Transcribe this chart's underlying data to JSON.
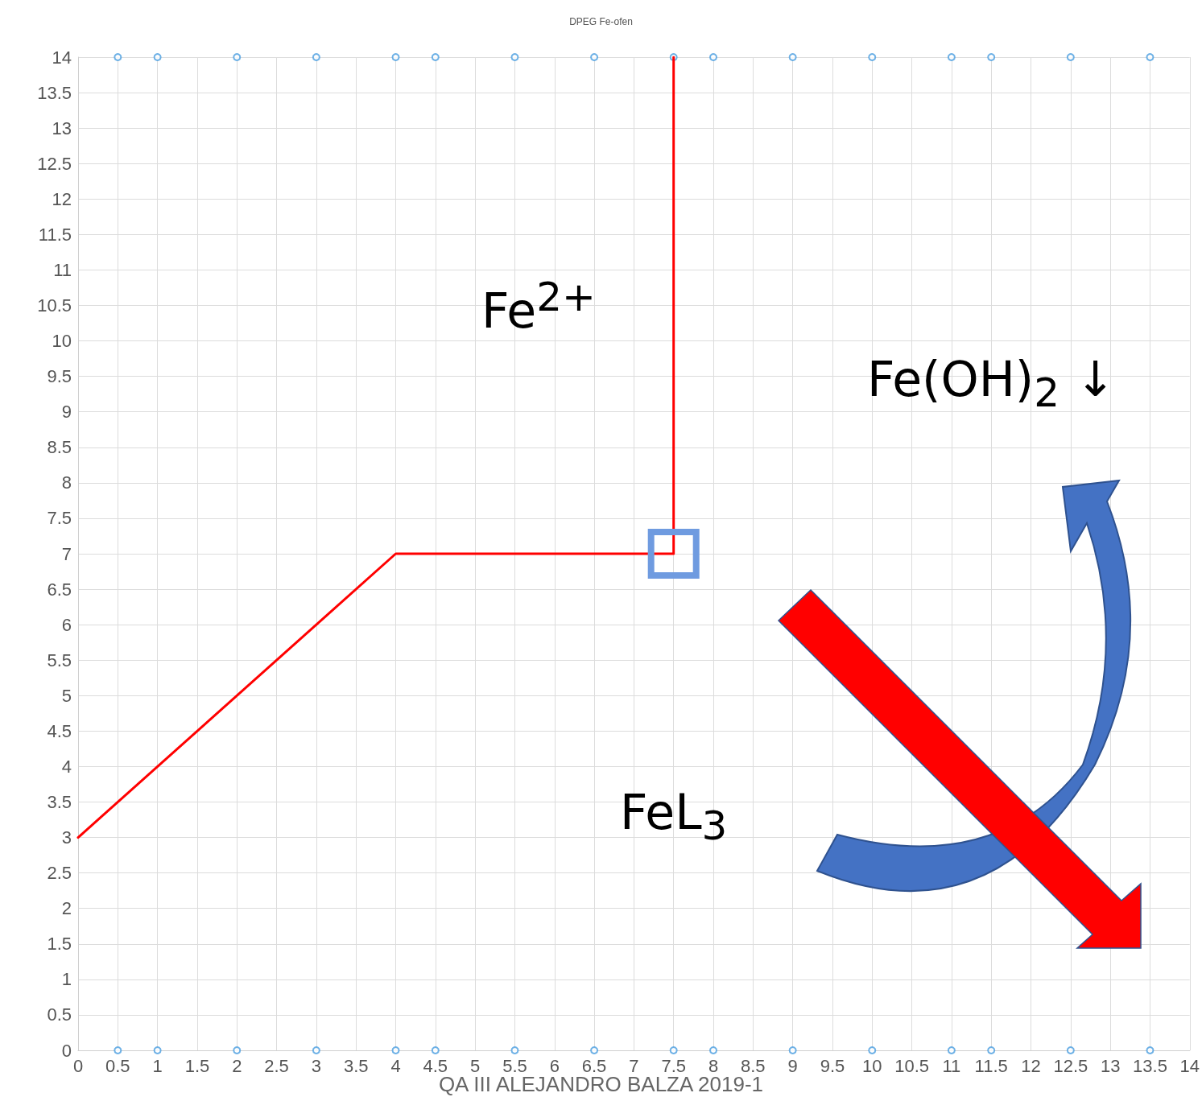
{
  "chart_data": {
    "type": "line",
    "title": "DPEG Fe-ofen",
    "series": [
      {
        "color": "#ff0000",
        "x": [
          0,
          4,
          7.5,
          7.5
        ],
        "values": [
          3,
          7,
          7,
          14
        ],
        "marker": "none",
        "line_style": "solid"
      },
      {
        "type": "scatter",
        "color": "#4a9de0",
        "marker": "circle",
        "x": [
          0.5,
          1,
          2,
          3,
          4,
          4.5,
          5.5,
          6.5,
          7.5,
          8,
          9,
          10,
          11,
          11.5,
          12.5,
          13.5
        ],
        "values": [
          14,
          14,
          14,
          14,
          14,
          14,
          14,
          14,
          14,
          14,
          14,
          14,
          14,
          14,
          14,
          14
        ]
      },
      {
        "type": "scatter",
        "color": "#4a9de0",
        "marker": "circle",
        "x": [
          0.5,
          1,
          2,
          3,
          4,
          4.5,
          5.5,
          6.5,
          7.5,
          8,
          9,
          10,
          11,
          11.5,
          12.5,
          13.5
        ],
        "values": [
          0,
          0,
          0,
          0,
          0,
          0,
          0,
          0,
          0,
          0,
          0,
          0,
          0,
          0,
          0,
          0
        ]
      }
    ],
    "xlim": [
      0,
      14
    ],
    "xticks": [
      0,
      0.5,
      1,
      1.5,
      2,
      2.5,
      3,
      3.5,
      4,
      4.5,
      5,
      5.5,
      6,
      6.5,
      7,
      7.5,
      8,
      8.5,
      9,
      9.5,
      10,
      10.5,
      11,
      11.5,
      12,
      12.5,
      13,
      13.5,
      14
    ],
    "ylim": [
      0,
      14
    ],
    "yticks": [
      0,
      0.5,
      1,
      1.5,
      2,
      2.5,
      3,
      3.5,
      4,
      4.5,
      5,
      5.5,
      6,
      6.5,
      7,
      7.5,
      8,
      8.5,
      9,
      9.5,
      10,
      10.5,
      11,
      11.5,
      12,
      12.5,
      13,
      13.5,
      14
    ],
    "grid": true,
    "annotations": [
      "Fe$^{2+}$",
      "Fe(OH)$_{2}$ ↓",
      "FeL$_{3}$",
      "QA III  ALEJANDRO BALZA  2019-1"
    ]
  }
}
